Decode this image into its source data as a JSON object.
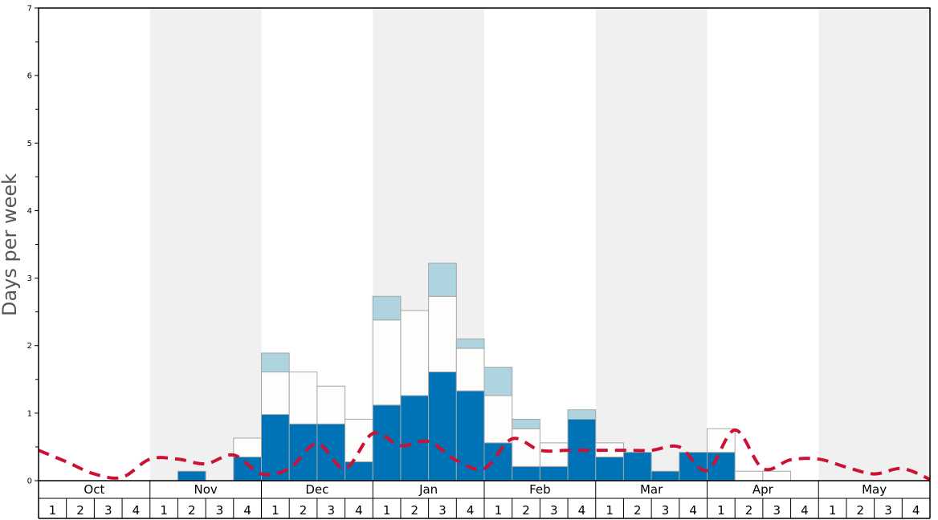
{
  "chart_data": {
    "type": "bar",
    "ylabel": "Days per week",
    "ylim": [
      0,
      7
    ],
    "yticks": [
      "0",
      "1",
      "2",
      "3",
      "4",
      "5",
      "6",
      "7"
    ],
    "months": [
      "Oct",
      "Nov",
      "Dec",
      "Jan",
      "Feb",
      "Mar",
      "Apr",
      "May"
    ],
    "week_labels": [
      "1",
      "2",
      "3",
      "4"
    ],
    "colors": {
      "bar_dark": "#0072b6",
      "bar_light": "#aed4e0",
      "bar_white": "#fdfdfb",
      "bar_stroke": "#a6a6a6",
      "line": "#cc1133",
      "shade": "#f0f0f0"
    },
    "stacked_series": [
      {
        "color": "bar_dark",
        "values": [
          0,
          0,
          0,
          0,
          0,
          0.14,
          0,
          0.35,
          0.98,
          0.84,
          0.84,
          0.28,
          1.12,
          1.26,
          1.61,
          1.33,
          0.56,
          0.21,
          0.21,
          0.91,
          0.35,
          0.42,
          0.14,
          0.42,
          0.42,
          0,
          0,
          0,
          0,
          0,
          0,
          0
        ]
      },
      {
        "color": "bar_white",
        "values": [
          0,
          0,
          0,
          0,
          0,
          0,
          0,
          0.28,
          0.63,
          0.77,
          0.56,
          0.63,
          1.26,
          1.26,
          1.12,
          0.63,
          0.7,
          0.56,
          0.35,
          0,
          0.21,
          0,
          0,
          0,
          0.35,
          0.14,
          0.14,
          0,
          0,
          0,
          0,
          0
        ]
      },
      {
        "color": "bar_light",
        "values": [
          0,
          0,
          0,
          0,
          0,
          0,
          0,
          0,
          0.28,
          0,
          0,
          0,
          0.35,
          0,
          0.49,
          0.14,
          0.42,
          0.14,
          0,
          0.14,
          0,
          0,
          0,
          0,
          0,
          0,
          0,
          0,
          0,
          0,
          0,
          0
        ]
      }
    ],
    "line": {
      "style": "dashed",
      "values": [
        0.45,
        0.28,
        0.1,
        0.05,
        0.32,
        0.32,
        0.25,
        0.38,
        0.1,
        0.18,
        0.55,
        0.18,
        0.7,
        0.52,
        0.58,
        0.3,
        0.18,
        0.62,
        0.45,
        0.45,
        0.45,
        0.45,
        0.45,
        0.5,
        0.15,
        0.75,
        0.18,
        0.31,
        0.32,
        0.2,
        0.1,
        0.18,
        0.02
      ]
    },
    "shaded_months": [
      1,
      3,
      5,
      7
    ],
    "grid": false,
    "legend": "none"
  }
}
